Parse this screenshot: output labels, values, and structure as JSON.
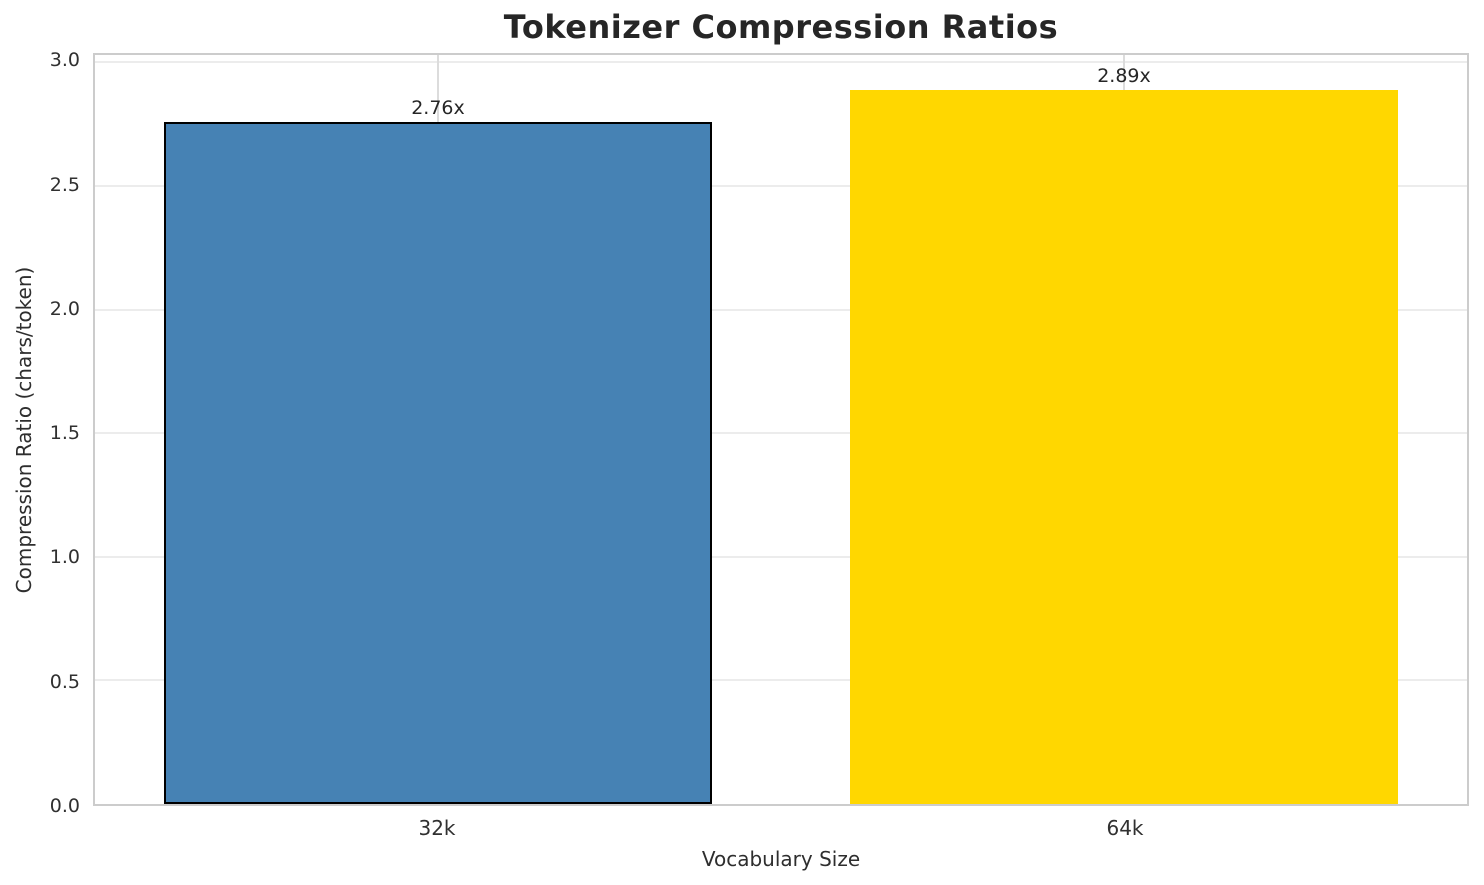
{
  "chart_data": {
    "type": "bar",
    "title": "Tokenizer Compression Ratios",
    "xlabel": "Vocabulary Size",
    "ylabel": "Compression Ratio (chars/token)",
    "categories": [
      "32k",
      "64k"
    ],
    "values": [
      2.76,
      2.89
    ],
    "value_labels": [
      "2.76x",
      "2.89x"
    ],
    "bar_colors": [
      "#4682b4",
      "#ffd700"
    ],
    "bar_edge_colors": [
      "#000000",
      "#ffd700"
    ],
    "bar_width_fraction": 0.8,
    "ylim": [
      0,
      3.03
    ],
    "yticks": [
      0.0,
      0.5,
      1.0,
      1.5,
      2.0,
      2.5,
      3.0
    ],
    "ytick_labels": [
      "0.0",
      "0.5",
      "1.0",
      "1.5",
      "2.0",
      "2.5",
      "3.0"
    ],
    "grid": true,
    "legend_position": "none",
    "spine_color": "#cccccc",
    "background_color": "#ffffff"
  }
}
